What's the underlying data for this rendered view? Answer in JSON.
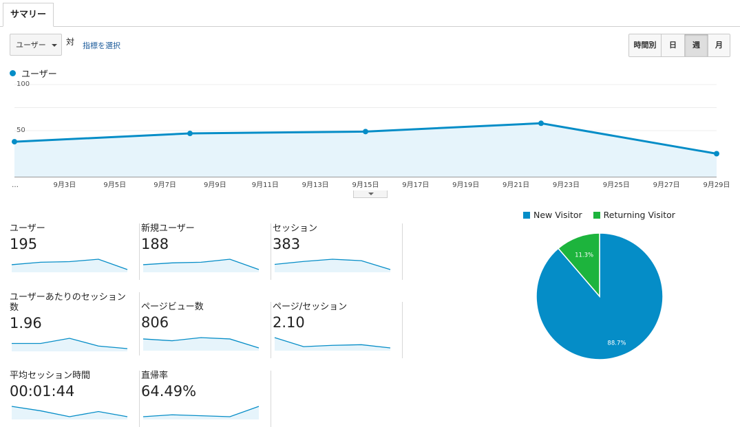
{
  "tab": {
    "label": "サマリー"
  },
  "toolbar": {
    "metric_select": "ユーザー",
    "vs": "対",
    "select_metric_link": "指標を選択",
    "granularity": [
      "時間別",
      "日",
      "週",
      "月"
    ],
    "granularity_active": "週"
  },
  "colors": {
    "accent": "#058dc7",
    "returning": "#1db43d",
    "fill": "#e6f4fb"
  },
  "legend_series": "ユーザー",
  "chart_data": {
    "type": "line",
    "series": [
      {
        "name": "ユーザー",
        "x": [
          "9月1日",
          "9月8日",
          "9月15日",
          "9月22日",
          "9月29日"
        ],
        "values": [
          38,
          47,
          49,
          58,
          25
        ]
      }
    ],
    "ylim": [
      0,
      100
    ],
    "yticks": [
      "100",
      "50"
    ],
    "xticks": [
      "…",
      "9月3日",
      "9月5日",
      "9月7日",
      "9月9日",
      "9月11日",
      "9月13日",
      "9月15日",
      "9月17日",
      "9月19日",
      "9月21日",
      "9月23日",
      "9月25日",
      "9月27日",
      "9月29日"
    ]
  },
  "metrics": [
    {
      "label": "ユーザー",
      "value": "195",
      "spark": [
        4,
        6,
        6.5,
        8.5,
        0
      ]
    },
    {
      "label": "新規ユーザー",
      "value": "188",
      "spark": [
        4,
        5.5,
        6,
        8.5,
        0
      ]
    },
    {
      "label": "セッション",
      "value": "383",
      "spark": [
        7,
        11,
        14,
        12,
        0
      ]
    },
    {
      "label": "ユーザーあたりのセッション数",
      "value": "1.96",
      "spark": [
        9,
        9,
        10,
        8.5,
        8
      ]
    },
    {
      "label": "ページビュー数",
      "value": "806",
      "spark": [
        14,
        12,
        15.5,
        14,
        4
      ]
    },
    {
      "label": "ページ/セッション",
      "value": "2.10",
      "spark": [
        18,
        11,
        12,
        12.5,
        10
      ]
    },
    {
      "label": "平均セッション時間",
      "value": "00:01:44",
      "spark": [
        16,
        13,
        9,
        12.5,
        9
      ]
    },
    {
      "label": "直帰率",
      "value": "64.49%",
      "spark": [
        9.5,
        10.5,
        10,
        9.5,
        15
      ]
    }
  ],
  "pie": {
    "legend": [
      "New Visitor",
      "Returning Visitor"
    ],
    "values": [
      88.7,
      11.3
    ],
    "labels": [
      "88.7%",
      "11.3%"
    ]
  }
}
